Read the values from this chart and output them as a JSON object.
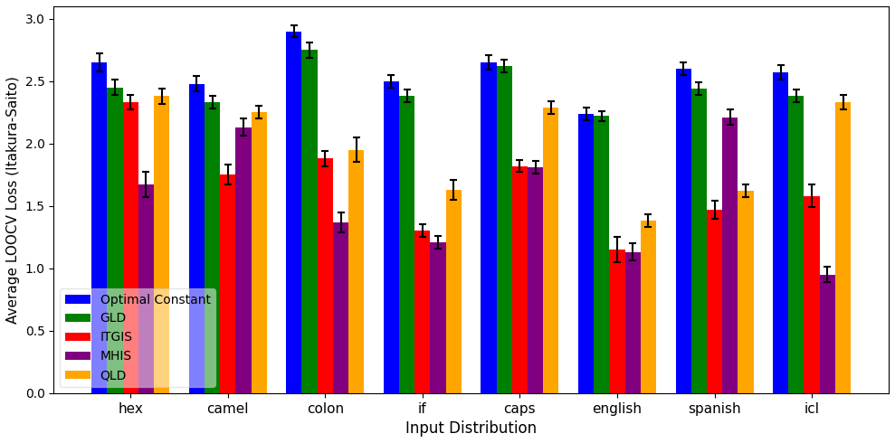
{
  "categories": [
    "hex",
    "camel",
    "colon",
    "if",
    "caps",
    "english",
    "spanish",
    "icl"
  ],
  "series": [
    {
      "label": "Optimal Constant",
      "color": "blue",
      "values": [
        2.65,
        2.48,
        2.9,
        2.5,
        2.65,
        2.24,
        2.6,
        2.57
      ],
      "errors": [
        0.07,
        0.06,
        0.05,
        0.05,
        0.06,
        0.05,
        0.05,
        0.06
      ]
    },
    {
      "label": "GLD",
      "color": "green",
      "values": [
        2.45,
        2.33,
        2.75,
        2.38,
        2.62,
        2.22,
        2.44,
        2.38
      ],
      "errors": [
        0.06,
        0.05,
        0.06,
        0.05,
        0.05,
        0.04,
        0.05,
        0.05
      ]
    },
    {
      "label": "ITGIS",
      "color": "red",
      "values": [
        2.33,
        1.75,
        1.88,
        1.3,
        1.82,
        1.15,
        1.47,
        1.58
      ],
      "errors": [
        0.06,
        0.08,
        0.06,
        0.05,
        0.05,
        0.1,
        0.07,
        0.09
      ]
    },
    {
      "label": "MHIS",
      "color": "purple",
      "values": [
        1.67,
        2.13,
        1.37,
        1.21,
        1.81,
        1.13,
        2.21,
        0.95
      ],
      "errors": [
        0.1,
        0.07,
        0.08,
        0.05,
        0.05,
        0.07,
        0.06,
        0.06
      ]
    },
    {
      "label": "QLD",
      "color": "orange",
      "values": [
        2.38,
        2.25,
        1.95,
        1.63,
        2.29,
        1.38,
        1.62,
        2.33
      ],
      "errors": [
        0.06,
        0.05,
        0.1,
        0.08,
        0.05,
        0.05,
        0.05,
        0.06
      ]
    }
  ],
  "ylabel": "Average LOOCV Loss (Itakura-Saito)",
  "xlabel": "Input Distribution",
  "ylim": [
    0,
    3.1
  ],
  "yticks": [
    0.0,
    0.5,
    1.0,
    1.5,
    2.0,
    2.5,
    3.0
  ],
  "legend_loc": "lower left",
  "bar_width": 0.16,
  "figwidth": 9.89,
  "figheight": 4.9,
  "dpi": 100
}
